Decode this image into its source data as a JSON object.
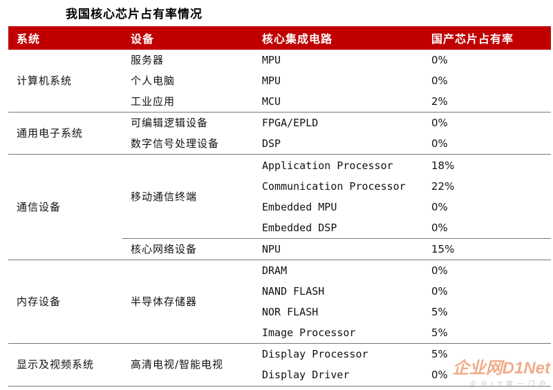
{
  "title": "我国核心芯片占有率情况",
  "headers": [
    "系统",
    "设备",
    "核心集成电路",
    "国产芯片占有率"
  ],
  "groups": [
    {
      "system": "计算机系统",
      "devices": [
        {
          "device": "服务器",
          "chips": [
            {
              "chip": "MPU",
              "share": "0%"
            }
          ]
        },
        {
          "device": "个人电脑",
          "chips": [
            {
              "chip": "MPU",
              "share": "0%"
            }
          ]
        },
        {
          "device": "工业应用",
          "chips": [
            {
              "chip": "MCU",
              "share": "2%"
            }
          ]
        }
      ]
    },
    {
      "system": "通用电子系统",
      "devices": [
        {
          "device": "可编辑逻辑设备",
          "chips": [
            {
              "chip": "FPGA/EPLD",
              "share": "0%"
            }
          ]
        },
        {
          "device": "数字信号处理设备",
          "chips": [
            {
              "chip": "DSP",
              "share": "0%"
            }
          ]
        }
      ]
    },
    {
      "system": "通信设备",
      "devices": [
        {
          "device": "移动通信终端",
          "chips": [
            {
              "chip": "Application Processor",
              "share": "18%"
            },
            {
              "chip": "Communication Processor",
              "share": "22%"
            },
            {
              "chip": "Embedded MPU",
              "share": "0%"
            },
            {
              "chip": "Embedded DSP",
              "share": "0%"
            }
          ]
        },
        {
          "device": "核心网络设备",
          "chips": [
            {
              "chip": "NPU",
              "share": "15%"
            }
          ]
        }
      ]
    },
    {
      "system": "内存设备",
      "devices": [
        {
          "device": "半导体存储器",
          "chips": [
            {
              "chip": "DRAM",
              "share": "0%"
            },
            {
              "chip": "NAND FLASH",
              "share": "0%"
            },
            {
              "chip": "NOR FLASH",
              "share": "5%"
            },
            {
              "chip": "Image Processor",
              "share": "5%"
            }
          ]
        }
      ]
    },
    {
      "system": "显示及视频系统",
      "devices": [
        {
          "device": "高清电视/智能电视",
          "chips": [
            {
              "chip": "Display Processor",
              "share": "5%"
            },
            {
              "chip": "Display Driver",
              "share": "0%"
            }
          ]
        }
      ]
    }
  ],
  "watermark": {
    "main": "企业网D1Net",
    "sub": "企业IT第一门户"
  }
}
